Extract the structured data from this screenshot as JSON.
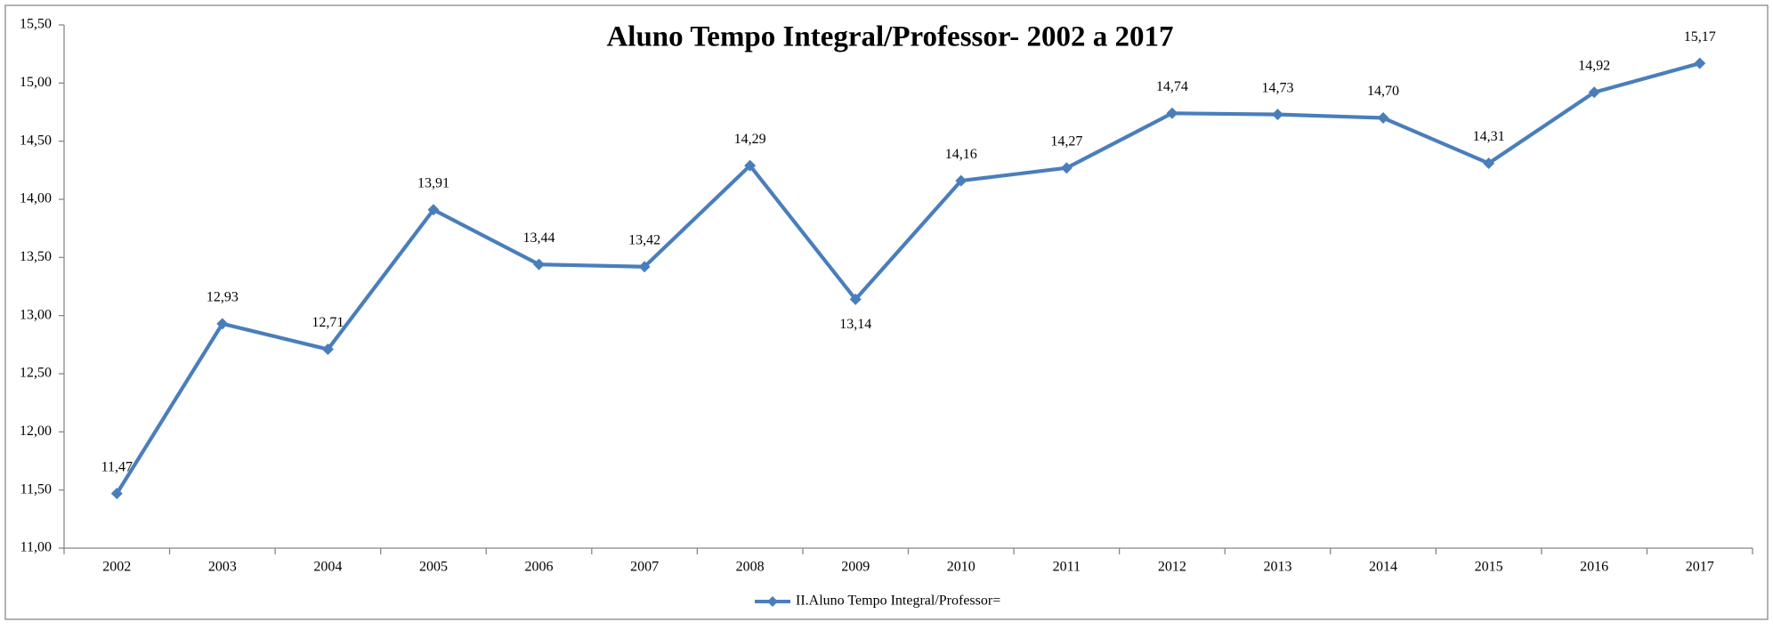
{
  "chart_data": {
    "type": "line",
    "title": "Aluno Tempo Integral/Professor- 2002 a 2017",
    "categories": [
      "2002",
      "2003",
      "2004",
      "2005",
      "2006",
      "2007",
      "2008",
      "2009",
      "2010",
      "2011",
      "2012",
      "2013",
      "2014",
      "2015",
      "2016",
      "2017"
    ],
    "series": [
      {
        "name": "II.Aluno Tempo Integral/Professor=",
        "color": "#4a7ebb",
        "values": [
          11.47,
          12.93,
          12.71,
          13.91,
          13.44,
          13.42,
          14.29,
          13.14,
          14.16,
          14.27,
          14.74,
          14.73,
          14.7,
          14.31,
          14.92,
          15.17
        ],
        "value_labels": [
          "11,47",
          "12,93",
          "12,71",
          "13,91",
          "13,44",
          "13,42",
          "14,29",
          "13,14",
          "14,16",
          "14,27",
          "14,74",
          "14,73",
          "14,70",
          "14,31",
          "14,92",
          "15,17"
        ]
      }
    ],
    "ylim": [
      11,
      15.5
    ],
    "yticks": [
      {
        "value": 11,
        "label": "11,00"
      },
      {
        "value": 11.5,
        "label": "11,50"
      },
      {
        "value": 12,
        "label": "12,00"
      },
      {
        "value": 12.5,
        "label": "12,50"
      },
      {
        "value": 13,
        "label": "13,00"
      },
      {
        "value": 13.5,
        "label": "13,50"
      },
      {
        "value": 14,
        "label": "14,00"
      },
      {
        "value": 14.5,
        "label": "14,50"
      },
      {
        "value": 15,
        "label": "15,00"
      },
      {
        "value": 15.5,
        "label": "15,50"
      }
    ],
    "grid": false,
    "legend": "bottom"
  }
}
